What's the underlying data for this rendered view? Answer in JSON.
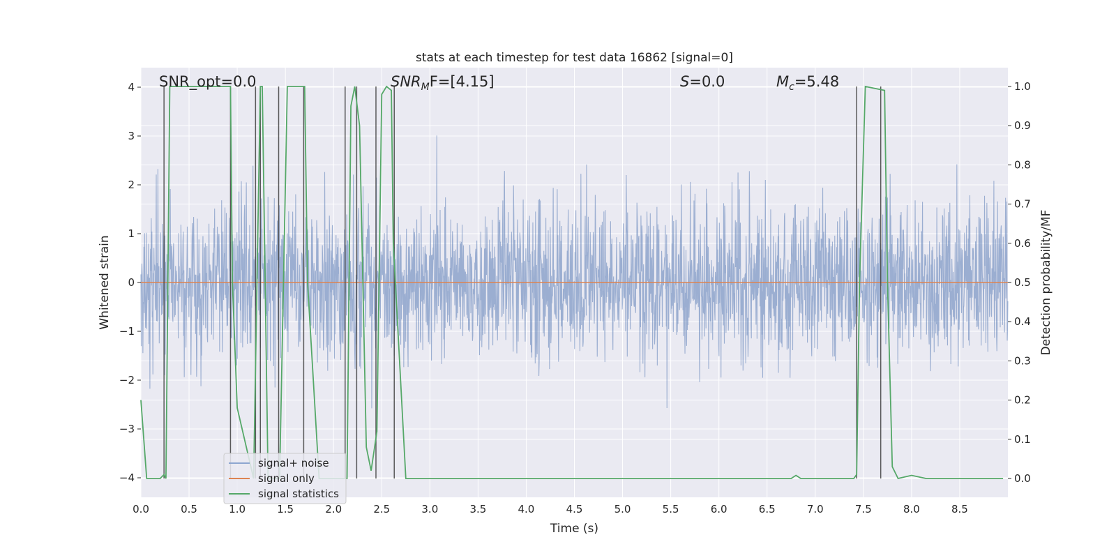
{
  "chart_data": {
    "type": "line",
    "title": "stats at each timestep for test data 16862 [signal=0]",
    "xlabel": "Time (s)",
    "ylabel_left": "Whitened strain",
    "ylabel_right": "Detection probability/MF",
    "xlim": [
      0.0,
      9.0
    ],
    "ylim_left": [
      -4.4,
      4.4
    ],
    "ylim_right": [
      -0.048,
      1.048
    ],
    "x_ticks": [
      "0.0",
      "0.5",
      "1.0",
      "1.5",
      "2.0",
      "2.5",
      "3.0",
      "3.5",
      "4.0",
      "4.5",
      "5.0",
      "5.5",
      "6.0",
      "6.5",
      "7.0",
      "7.5",
      "8.0",
      "8.5"
    ],
    "y_ticks_left": [
      "−4",
      "−3",
      "−2",
      "−1",
      "0",
      "1",
      "2",
      "3",
      "4"
    ],
    "y_ticks_right": [
      "0.0",
      "0.1",
      "0.2",
      "0.3",
      "0.4",
      "0.5",
      "0.6",
      "0.7",
      "0.8",
      "0.9",
      "1.0"
    ],
    "annotations": {
      "snr_opt": "SNR_opt=0.0",
      "snr_mf_main": "SNR",
      "snr_mf_sub": "M",
      "snr_mf_rest": "F=[4.15]",
      "s_main": "S",
      "s_rest": "=0.0",
      "mc_main": "M",
      "mc_sub": "c",
      "mc_rest": "=5.48"
    },
    "legend": {
      "location": "lower left",
      "entries": [
        "signal+ noise",
        "signal only",
        "signal statistics"
      ]
    },
    "series": [
      {
        "name": "signal+ noise",
        "axis": "left",
        "note": "noise trace, approx. std 0.8, sampled densely over 0-9 s",
        "amplitude_std": 0.8
      },
      {
        "name": "signal only",
        "axis": "left",
        "x": [
          0.0,
          9.0
        ],
        "values": [
          0.0,
          0.0
        ]
      },
      {
        "name": "signal statistics",
        "axis": "right",
        "x": [
          0.0,
          0.03,
          0.06,
          0.2,
          0.24,
          0.26,
          0.3,
          0.93,
          0.95,
          1.0,
          1.17,
          1.24,
          1.26,
          1.32,
          1.44,
          1.48,
          1.52,
          1.7,
          1.73,
          1.85,
          2.09,
          2.14,
          2.18,
          2.22,
          2.27,
          2.34,
          2.39,
          2.45,
          2.5,
          2.55,
          2.6,
          2.62,
          2.75,
          6.75,
          6.8,
          6.85,
          7.4,
          7.43,
          7.46,
          7.52,
          7.72,
          7.75,
          7.8,
          7.86,
          8.0,
          8.15,
          8.5,
          8.95
        ],
        "values": [
          0.2,
          0.1,
          0.0,
          0.0,
          0.01,
          0.0,
          1.0,
          1.0,
          0.5,
          0.18,
          0.0,
          1.0,
          1.0,
          0.0,
          0.0,
          0.5,
          1.0,
          1.0,
          0.5,
          0.0,
          0.0,
          0.0,
          0.95,
          1.0,
          0.9,
          0.08,
          0.02,
          0.12,
          0.98,
          1.0,
          0.99,
          0.6,
          0.0,
          0.0,
          0.008,
          0.0,
          0.0,
          0.01,
          0.5,
          1.0,
          0.99,
          0.5,
          0.03,
          0.0,
          0.008,
          0.0,
          0.0,
          0.0
        ]
      }
    ],
    "vertical_lines_x": [
      0.24,
      0.93,
      1.19,
      1.24,
      1.43,
      1.69,
      2.12,
      2.24,
      2.44,
      2.63,
      7.43,
      7.68
    ],
    "colors": {
      "noise": "#4c72b0",
      "signal_only": "#dd8452",
      "statistics": "#55a868",
      "vlines": "#404040",
      "plot_bg": "#eaeaf2",
      "grid": "#ffffff"
    }
  }
}
